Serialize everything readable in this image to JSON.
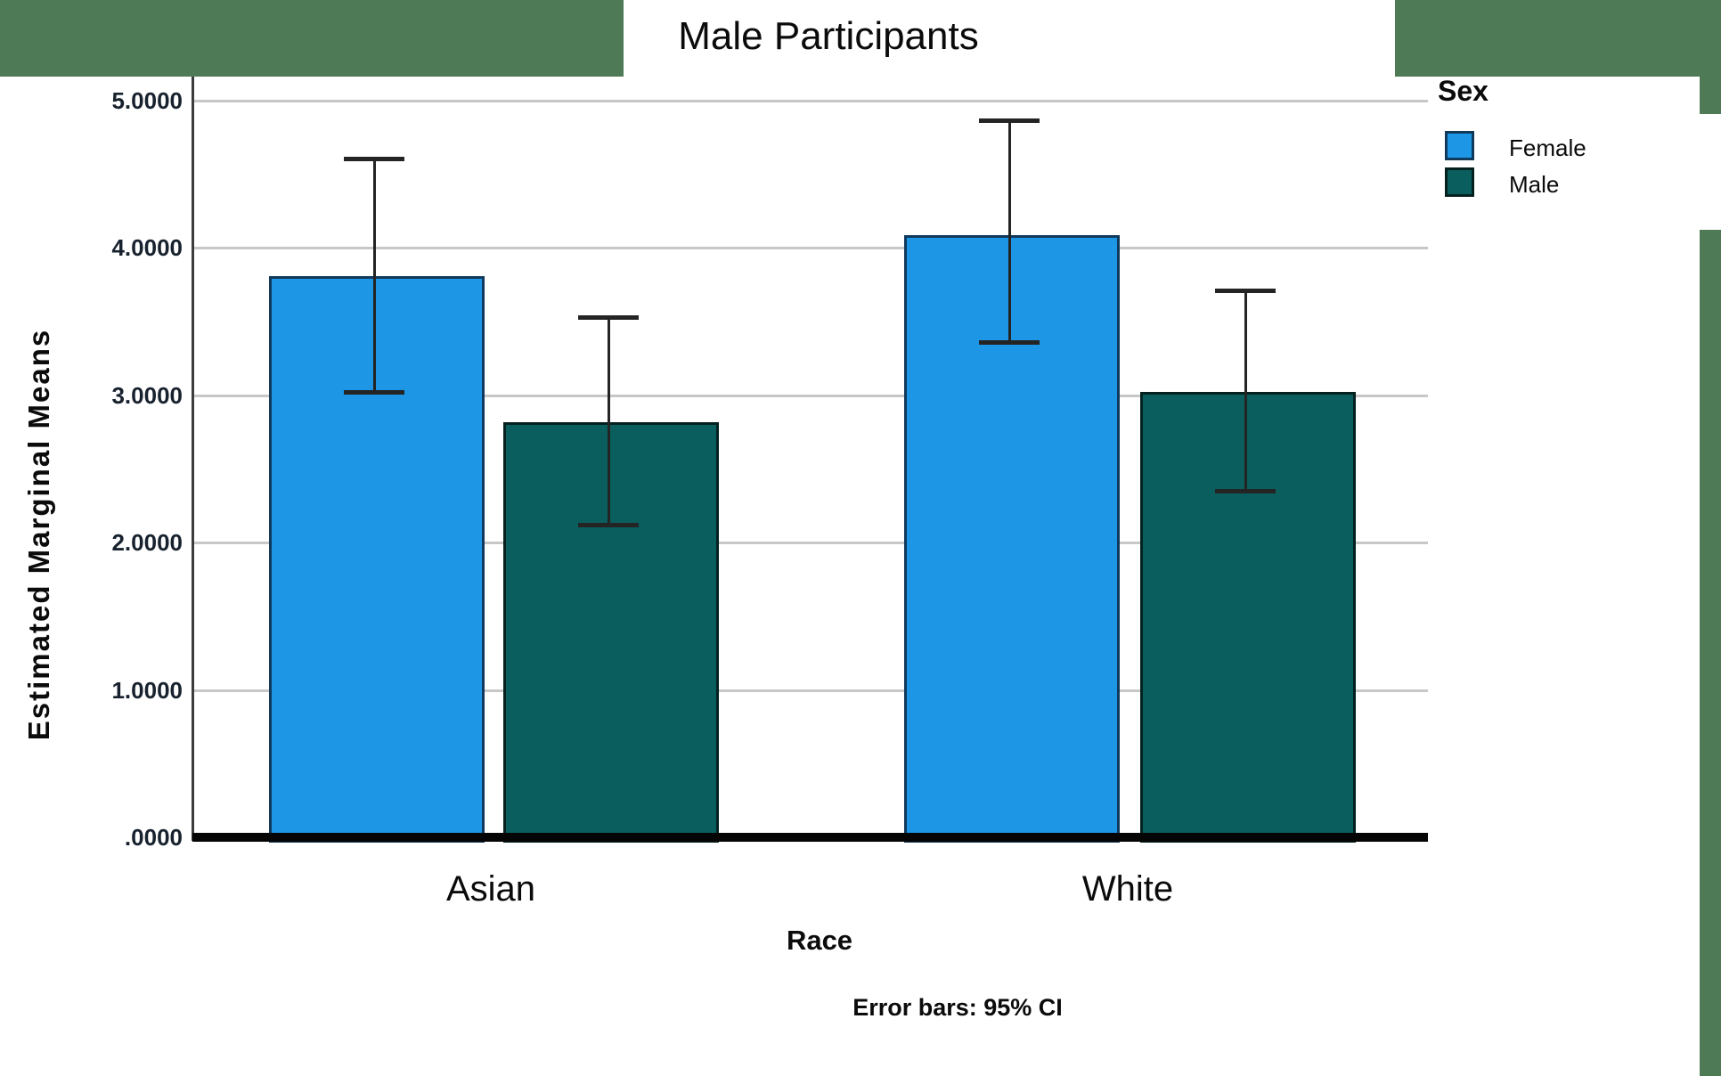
{
  "title": {
    "text": "Male Participants"
  },
  "decor": {
    "green": "#4e7b55"
  },
  "legend": {
    "title": "Sex",
    "items": [
      {
        "label": "Female",
        "color": "#1d96e6",
        "border": "#10395c"
      },
      {
        "label": "Male",
        "color": "#0b5e5e",
        "border": "#03211f"
      }
    ]
  },
  "chart_data": {
    "type": "bar",
    "title": "Male Participants",
    "xlabel": "Race",
    "ylabel": "Estimated Marginal Means",
    "footnote": "Error bars: 95% CI",
    "categories": [
      "Asian",
      "White"
    ],
    "series": [
      {
        "name": "Female",
        "values": [
          3.81,
          4.09
        ],
        "ci_low": [
          3.02,
          3.36
        ],
        "ci_high": [
          4.61,
          4.87
        ],
        "color": "#1d96e6",
        "border": "#10395c"
      },
      {
        "name": "Male",
        "values": [
          2.82,
          3.02
        ],
        "ci_low": [
          2.12,
          2.35
        ],
        "ci_high": [
          3.53,
          3.71
        ],
        "color": "#0b5e5e",
        "border": "#03211f"
      }
    ],
    "ylim": [
      0,
      5
    ],
    "yticks": {
      "values": [
        5,
        4,
        3,
        2,
        1,
        0
      ],
      "labels": [
        "5.0000",
        "4.0000",
        "3.0000",
        "2.0000",
        "1.0000",
        ".0000"
      ]
    },
    "grid": "horizontal",
    "legend_position": "top-right",
    "error_bars": "95% CI",
    "colors": {
      "gridline": "#c7c7c7",
      "axis": "#3c3c3c",
      "baseline": "#050505",
      "error_bar": "#242424"
    }
  }
}
